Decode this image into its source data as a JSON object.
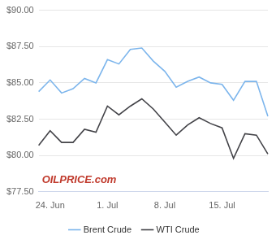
{
  "chart_data": {
    "type": "line",
    "categories": [
      null,
      "24. Jun",
      null,
      null,
      null,
      null,
      "1. Jul",
      null,
      null,
      null,
      null,
      "8. Jul",
      null,
      null,
      null,
      null,
      "15. Jul",
      null,
      null,
      null,
      null
    ],
    "series": [
      {
        "name": "Brent Crude",
        "color": "#7cb5ec",
        "values": [
          84.4,
          85.2,
          84.3,
          84.6,
          85.3,
          85.0,
          86.6,
          86.3,
          87.3,
          87.4,
          86.5,
          85.8,
          84.7,
          85.1,
          85.4,
          85.0,
          84.9,
          83.8,
          85.1,
          85.1,
          82.7
        ]
      },
      {
        "name": "WTI Crude",
        "color": "#434348",
        "values": [
          80.7,
          81.7,
          80.9,
          80.9,
          81.8,
          81.6,
          83.4,
          82.8,
          83.4,
          83.9,
          83.2,
          82.3,
          81.4,
          82.1,
          82.6,
          82.2,
          81.9,
          79.8,
          81.5,
          81.4,
          80.1
        ]
      }
    ],
    "ylim": [
      77.5,
      90
    ],
    "yticks": [
      {
        "value": 77.5,
        "label": "$77.50"
      },
      {
        "value": 80,
        "label": "$80.00"
      },
      {
        "value": 82.5,
        "label": "$82.50"
      },
      {
        "value": 85,
        "label": "$85.00"
      },
      {
        "value": 87.5,
        "label": "$87.50"
      },
      {
        "value": 90,
        "label": "$90.00"
      }
    ],
    "grid": true,
    "legend": "bottom",
    "annotations": [
      "OILPRICE.com"
    ]
  }
}
